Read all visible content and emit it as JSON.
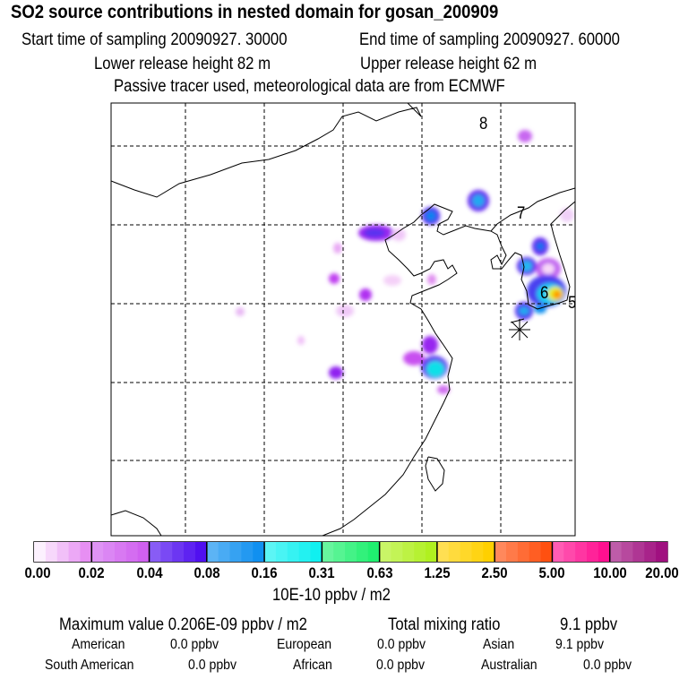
{
  "header": {
    "title": "SO2 source contributions in nested domain for gosan_200909",
    "start_label": "Start time of sampling 20090927. 30000",
    "end_label": "End time of sampling 20090927. 60000",
    "lower_label": "Lower release height   82 m",
    "upper_label": "Upper release height   62 m",
    "note": "Passive tracer used, meteorological data are from ECMWF"
  },
  "chart_data": {
    "type": "heatmap",
    "title": "SO2 source contributions in nested domain for gosan_200909",
    "colorbar": {
      "ticks": [
        "0.00",
        "0.02",
        "0.04",
        "0.08",
        "0.16",
        "0.31",
        "0.63",
        "1.25",
        "2.50",
        "5.00",
        "10.00",
        "20.00"
      ],
      "unit": "10E-10 ppbv / m2",
      "colors": [
        "#fbe6fb",
        "#d060f0",
        "#5010f0",
        "#1090f0",
        "#10f0f0",
        "#20f070",
        "#b0f020",
        "#ffd000",
        "#ff5010",
        "#ff1090",
        "#a01080"
      ]
    },
    "map_labels": [
      "8",
      "7",
      "6",
      "5"
    ],
    "receptor_marker": "star"
  },
  "footer": {
    "max_label": "Maximum value  0.206E-09 ppbv / m2",
    "total_label": "Total mixing ratio",
    "total_value": "9.1 ppbv",
    "regions": [
      {
        "name": "American",
        "value": "0.0 ppbv"
      },
      {
        "name": "European",
        "value": "0.0 ppbv"
      },
      {
        "name": "Asian",
        "value": "9.1 ppbv"
      },
      {
        "name": "South American",
        "value": "0.0 ppbv"
      },
      {
        "name": "African",
        "value": "0.0 ppbv"
      },
      {
        "name": "Australian",
        "value": "0.0 ppbv"
      }
    ]
  }
}
